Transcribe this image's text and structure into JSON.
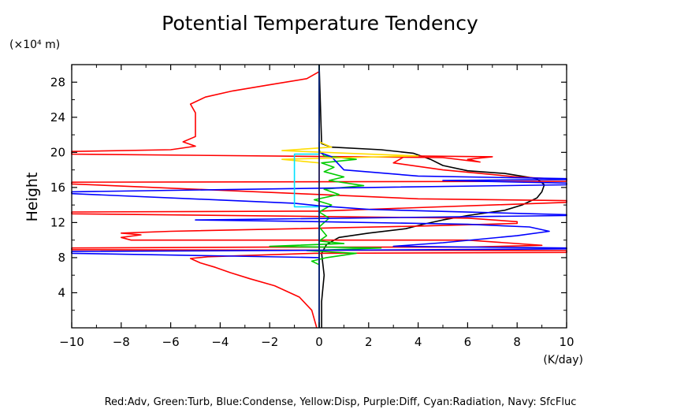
{
  "chart_data": {
    "type": "line",
    "title": "Potential Temperature Tendency",
    "ylabel": "Height",
    "y_unit": "(×10⁴ m)",
    "x_unit": "(K/day)",
    "xlim": [
      -10,
      10
    ],
    "ylim": [
      0,
      30
    ],
    "x_ticks": [
      -10,
      -8,
      -6,
      -4,
      -2,
      0,
      2,
      4,
      6,
      8,
      10
    ],
    "x_tick_labels": [
      "−10",
      "−8",
      "−6",
      "−4",
      "−2",
      "0",
      "2",
      "4",
      "6",
      "8",
      "10"
    ],
    "y_ticks": [
      4,
      8,
      12,
      16,
      20,
      24,
      28
    ],
    "y_tick_labels": [
      "4",
      "8",
      "12",
      "16",
      "20",
      "24",
      "28"
    ],
    "legend_text": "Red:Adv, Green:Turb, Blue:Condense, Yellow:Disp, Purple:Diff, Cyan:Radiation, Navy: SfcFluc",
    "series": [
      {
        "color": "#000000",
        "points": [
          [
            0.1,
            0
          ],
          [
            0.1,
            3
          ],
          [
            0.2,
            6
          ],
          [
            0.1,
            8.5
          ],
          [
            0.3,
            9.5
          ],
          [
            0.8,
            10.3
          ],
          [
            2,
            10.8
          ],
          [
            3.5,
            11.3
          ],
          [
            4.2,
            11.8
          ],
          [
            5,
            12.3
          ],
          [
            6,
            12.8
          ],
          [
            7.5,
            13.4
          ],
          [
            8.2,
            14
          ],
          [
            8.8,
            14.8
          ],
          [
            9,
            15.5
          ],
          [
            9.1,
            16.3
          ],
          [
            8.8,
            17
          ],
          [
            7.5,
            17.6
          ],
          [
            6,
            17.9
          ],
          [
            5,
            18.5
          ],
          [
            4.5,
            19.2
          ],
          [
            3.8,
            19.9
          ],
          [
            2.5,
            20.3
          ],
          [
            0.5,
            20.6
          ],
          [
            0.1,
            21
          ],
          [
            0,
            30
          ]
        ]
      },
      {
        "color": "#ff0000",
        "points": [
          [
            -0.1,
            0
          ],
          [
            -0.3,
            2
          ],
          [
            -0.8,
            3.5
          ],
          [
            -1.8,
            4.8
          ],
          [
            -2.8,
            5.6
          ],
          [
            -3.6,
            6.3
          ],
          [
            -4.2,
            6.9
          ],
          [
            -4.8,
            7.4
          ],
          [
            -5.2,
            7.9
          ],
          [
            -4.5,
            8.1
          ],
          [
            -0.2,
            8.5
          ],
          [
            10,
            8.6
          ],
          [
            10,
            8.8
          ],
          [
            -10,
            8.9
          ],
          [
            -10,
            9.1
          ],
          [
            -2,
            9.2
          ],
          [
            6,
            9.2
          ],
          [
            9,
            9.4
          ],
          [
            7.5,
            9.7
          ],
          [
            6,
            10
          ],
          [
            -7.6,
            10
          ],
          [
            -8,
            10.3
          ],
          [
            -7.2,
            10.6
          ],
          [
            -8,
            10.8
          ],
          [
            -6,
            11
          ],
          [
            4,
            11.6
          ],
          [
            8,
            11.9
          ],
          [
            8,
            12.1
          ],
          [
            6,
            12.5
          ],
          [
            -10,
            13
          ],
          [
            -10,
            13.2
          ],
          [
            0,
            13.3
          ],
          [
            10,
            14.3
          ],
          [
            10,
            14.5
          ],
          [
            4,
            14.7
          ],
          [
            0,
            15.2
          ],
          [
            -10,
            16.4
          ],
          [
            -10,
            16.6
          ],
          [
            10,
            16.7
          ],
          [
            10,
            16.9
          ],
          [
            8,
            17.2
          ],
          [
            5,
            18
          ],
          [
            3,
            18.8
          ],
          [
            3.5,
            19.6
          ],
          [
            7,
            19.5
          ],
          [
            6,
            19.2
          ],
          [
            6.5,
            18.9
          ],
          [
            5,
            19.4
          ],
          [
            -10,
            19.8
          ],
          [
            -10,
            20.1
          ],
          [
            -6,
            20.3
          ],
          [
            -5,
            20.7
          ],
          [
            -5.5,
            21.2
          ],
          [
            -5,
            21.8
          ],
          [
            -5,
            23
          ],
          [
            -5,
            24.5
          ],
          [
            -5.2,
            25.5
          ],
          [
            -4.6,
            26.3
          ],
          [
            -3.5,
            27
          ],
          [
            -2,
            27.7
          ],
          [
            -0.5,
            28.4
          ],
          [
            0,
            29.2
          ],
          [
            0,
            30
          ]
        ]
      },
      {
        "color": "#00cc00",
        "points": [
          [
            0,
            0
          ],
          [
            0,
            7.2
          ],
          [
            -0.3,
            7.6
          ],
          [
            0.3,
            8
          ],
          [
            1.5,
            8.5
          ],
          [
            -0.5,
            8.8
          ],
          [
            2.5,
            9.1
          ],
          [
            -2,
            9.3
          ],
          [
            1,
            9.6
          ],
          [
            0,
            9.9
          ],
          [
            0.3,
            10.5
          ],
          [
            0,
            11.5
          ],
          [
            0.4,
            12.5
          ],
          [
            0,
            13.2
          ],
          [
            0.5,
            14
          ],
          [
            -0.2,
            14.6
          ],
          [
            0.8,
            15.2
          ],
          [
            0.2,
            15.8
          ],
          [
            1.8,
            16.2
          ],
          [
            0.4,
            16.8
          ],
          [
            1,
            17.2
          ],
          [
            0.2,
            17.8
          ],
          [
            0.6,
            18.3
          ],
          [
            0.1,
            18.8
          ],
          [
            1.5,
            19.2
          ],
          [
            0.2,
            19.6
          ],
          [
            0,
            20.2
          ],
          [
            0,
            30
          ]
        ]
      },
      {
        "color": "#0000ff",
        "points": [
          [
            0,
            0
          ],
          [
            0,
            8
          ],
          [
            -10,
            8.5
          ],
          [
            -10,
            8.7
          ],
          [
            4,
            8.9
          ],
          [
            10,
            9
          ],
          [
            10,
            9.1
          ],
          [
            3,
            9.3
          ],
          [
            5,
            9.7
          ],
          [
            8,
            10.5
          ],
          [
            9.3,
            11
          ],
          [
            8.5,
            11.5
          ],
          [
            6,
            11.8
          ],
          [
            0,
            12.1
          ],
          [
            -5,
            12.3
          ],
          [
            10,
            12.8
          ],
          [
            10,
            12.9
          ],
          [
            2,
            13.5
          ],
          [
            0,
            13.9
          ],
          [
            -1,
            14.2
          ],
          [
            -10,
            15.3
          ],
          [
            -10,
            15.5
          ],
          [
            2,
            16
          ],
          [
            10,
            16.3
          ],
          [
            10,
            16.5
          ],
          [
            5,
            16.8
          ],
          [
            10,
            16.9
          ],
          [
            10,
            17
          ],
          [
            4,
            17.3
          ],
          [
            1,
            18
          ],
          [
            0.5,
            19.5
          ],
          [
            0,
            20
          ],
          [
            0,
            30
          ]
        ]
      },
      {
        "color": "#ffdd00",
        "points": [
          [
            0,
            0
          ],
          [
            0,
            18.8
          ],
          [
            -1.5,
            19.2
          ],
          [
            1.2,
            19.4
          ],
          [
            4,
            19.6
          ],
          [
            2,
            19.8
          ],
          [
            -1.5,
            20.2
          ],
          [
            0.5,
            20.6
          ],
          [
            0,
            21.2
          ],
          [
            0,
            30
          ]
        ]
      },
      {
        "color": "#00e0ff",
        "points": [
          [
            0,
            0
          ],
          [
            0,
            13.8
          ],
          [
            -1,
            13.8
          ],
          [
            -1,
            19.8
          ],
          [
            0,
            19.8
          ],
          [
            0,
            30
          ]
        ]
      },
      {
        "color": "#000066",
        "points": [
          [
            0,
            0
          ],
          [
            0,
            30
          ]
        ]
      }
    ]
  }
}
